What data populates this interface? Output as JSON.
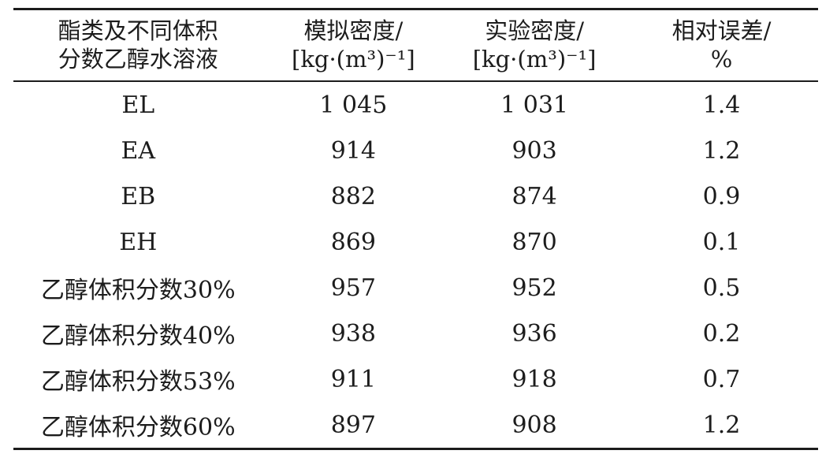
{
  "table": {
    "columns": [
      {
        "line1": "酯类及不同体积",
        "line2": "分数乙醇水溶液"
      },
      {
        "line1": "模拟密度/",
        "line2": "[kg·(m³)⁻¹]"
      },
      {
        "line1": "实验密度/",
        "line2": "[kg·(m³)⁻¹]"
      },
      {
        "line1": "相对误差/",
        "line2": "%"
      }
    ],
    "rows": [
      {
        "name": "EL",
        "sim": "1 045",
        "exp": "1 031",
        "err": "1.4"
      },
      {
        "name": "EA",
        "sim": "914",
        "exp": "903",
        "err": "1.2"
      },
      {
        "name": "EB",
        "sim": "882",
        "exp": "874",
        "err": "0.9"
      },
      {
        "name": "EH",
        "sim": "869",
        "exp": "870",
        "err": "0.1"
      },
      {
        "name": "乙醇体积分数30%",
        "sim": "957",
        "exp": "952",
        "err": "0.5"
      },
      {
        "name": "乙醇体积分数40%",
        "sim": "938",
        "exp": "936",
        "err": "0.2"
      },
      {
        "name": "乙醇体积分数53%",
        "sim": "911",
        "exp": "918",
        "err": "0.7"
      },
      {
        "name": "乙醇体积分数60%",
        "sim": "897",
        "exp": "908",
        "err": "1.2"
      }
    ]
  },
  "colors": {
    "text": "#1c1c1c",
    "rule": "#1c1c1c",
    "background": "#ffffff"
  }
}
